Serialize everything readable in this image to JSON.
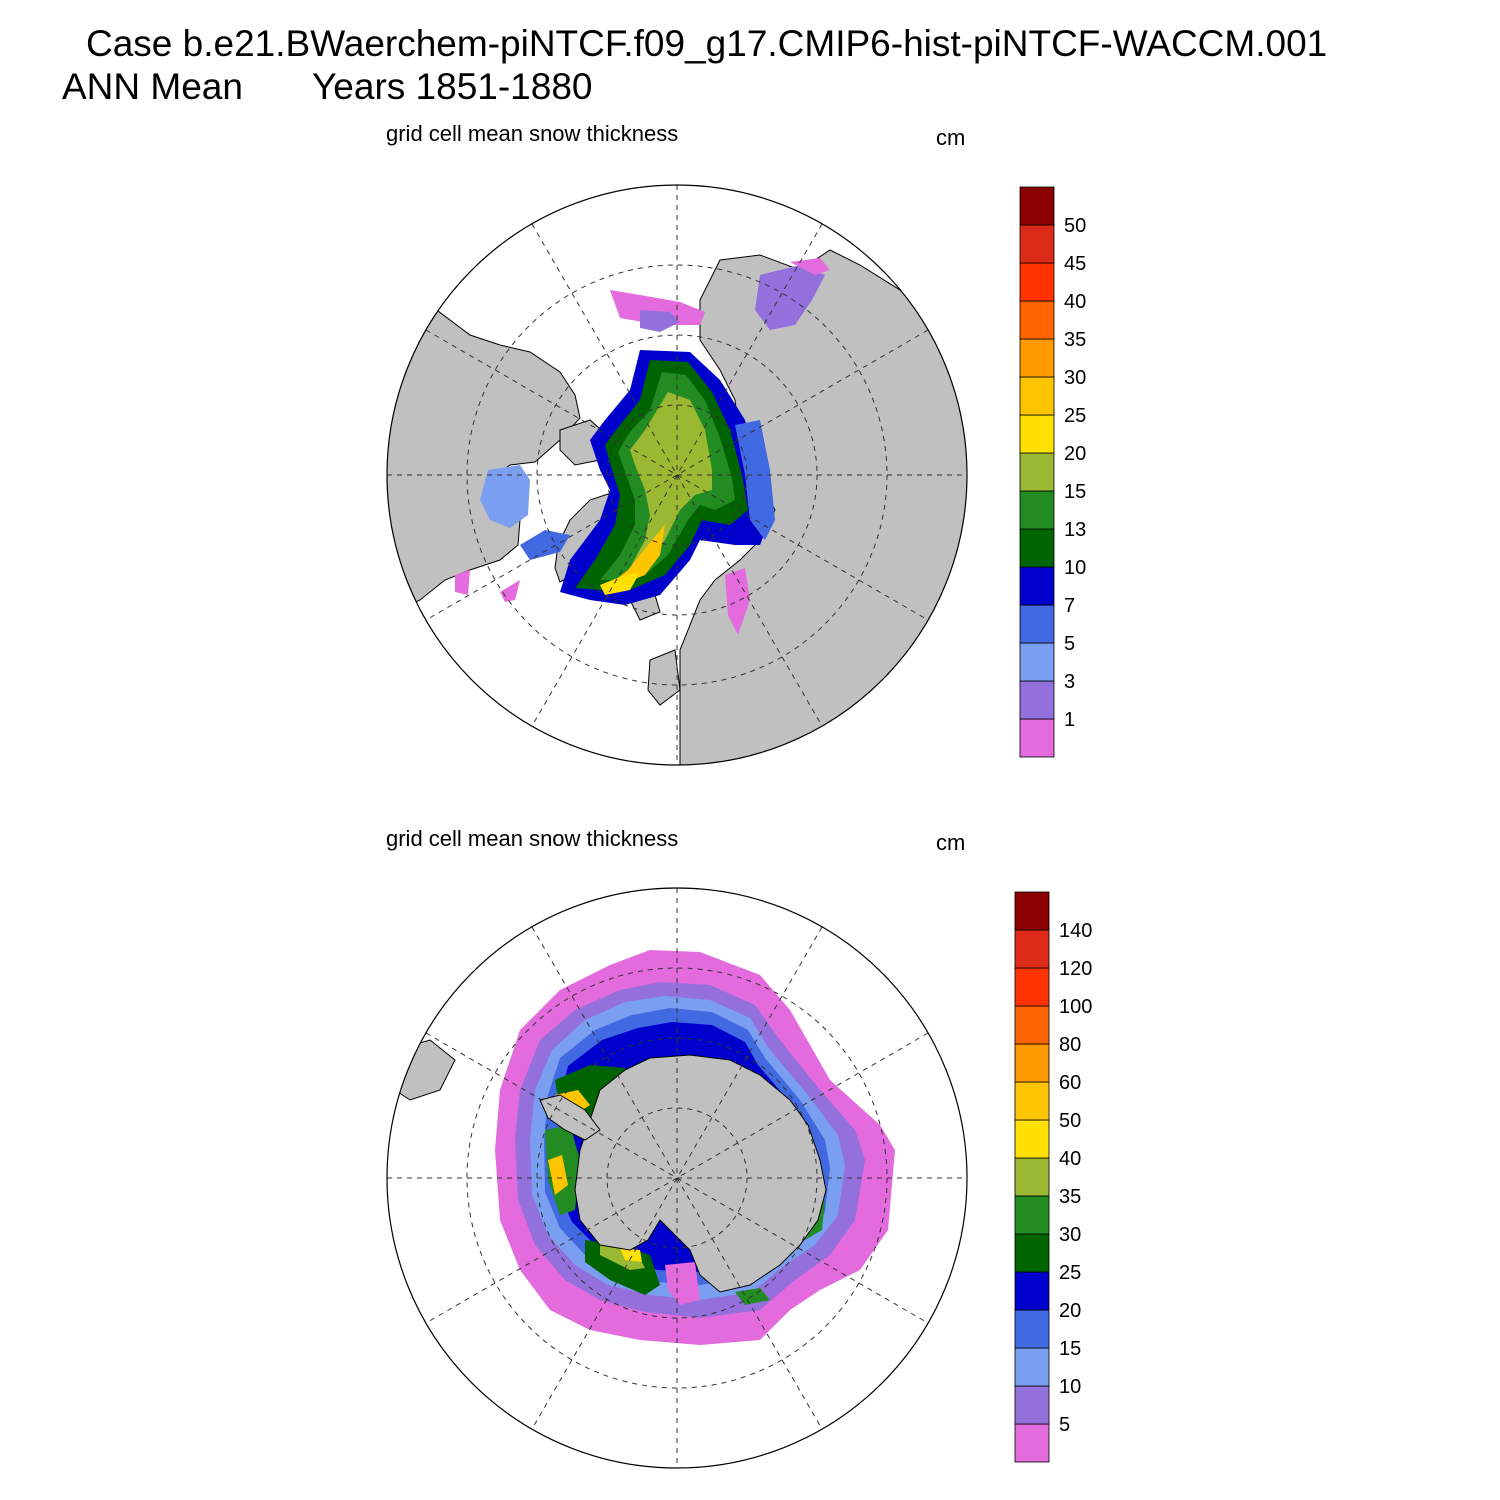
{
  "header": {
    "case_line": "Case b.e21.BWaerchem-piNTCF.f09_g17.CMIP6-hist-piNTCF-WACCM.001",
    "season": "ANN Mean",
    "years": "Years 1851-1880"
  },
  "colors": {
    "land": "#c0c0c0",
    "ocean": "#ffffff",
    "palette": [
      "#e36bdd",
      "#9370db",
      "#7b9ff0",
      "#4169e1",
      "#0000cd",
      "#006400",
      "#228b22",
      "#9ab832",
      "#ffe000",
      "#ffc400",
      "#ff9a00",
      "#ff6400",
      "#ff3200",
      "#dc2a18",
      "#8b0000"
    ]
  },
  "panels": [
    {
      "id": "arctic",
      "title": "grid cell mean snow thickness",
      "units": "cm",
      "hemisphere": "north",
      "legend_levels": [
        "1",
        "3",
        "5",
        "7",
        "10",
        "13",
        "15",
        "20",
        "25",
        "30",
        "35",
        "40",
        "45",
        "50"
      ]
    },
    {
      "id": "antarctic",
      "title": "grid cell mean snow thickness",
      "units": "cm",
      "hemisphere": "south",
      "legend_levels": [
        "5",
        "10",
        "15",
        "20",
        "25",
        "30",
        "35",
        "40",
        "50",
        "60",
        "80",
        "100",
        "120",
        "140"
      ]
    }
  ]
}
